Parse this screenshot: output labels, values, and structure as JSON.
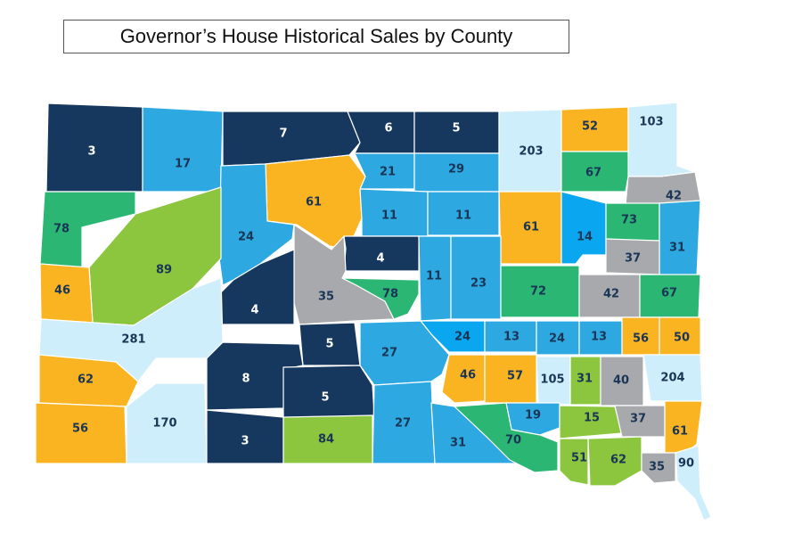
{
  "title": "Governor’s House Historical Sales by County",
  "colors": {
    "navy": "#16385e",
    "blue": "#2ea8e0",
    "brightblue": "#0aa7f0",
    "lightblue": "#cfeefb",
    "green": "#2bb673",
    "lime": "#8cc63f",
    "gold": "#fbb421",
    "gray": "#a7a9ac"
  },
  "counties": [
    {
      "value": "3",
      "color": "navy"
    },
    {
      "value": "17",
      "color": "blue"
    },
    {
      "value": "7",
      "color": "navy"
    },
    {
      "value": "6",
      "color": "navy"
    },
    {
      "value": "5",
      "color": "navy"
    },
    {
      "value": "203",
      "color": "lightblue"
    },
    {
      "value": "52",
      "color": "gold"
    },
    {
      "value": "103",
      "color": "lightblue"
    },
    {
      "value": "21",
      "color": "blue"
    },
    {
      "value": "29",
      "color": "blue"
    },
    {
      "value": "67",
      "color": "green"
    },
    {
      "value": "61",
      "color": "gold"
    },
    {
      "value": "42",
      "color": "gray"
    },
    {
      "value": "78",
      "color": "green"
    },
    {
      "value": "11",
      "color": "blue"
    },
    {
      "value": "11",
      "color": "blue"
    },
    {
      "value": "61",
      "color": "gold"
    },
    {
      "value": "14",
      "color": "brightblue"
    },
    {
      "value": "73",
      "color": "green"
    },
    {
      "value": "24",
      "color": "blue"
    },
    {
      "value": "31",
      "color": "blue"
    },
    {
      "value": "4",
      "color": "navy"
    },
    {
      "value": "37",
      "color": "gray"
    },
    {
      "value": "89",
      "color": "lime"
    },
    {
      "value": "11",
      "color": "blue"
    },
    {
      "value": "46",
      "color": "gold"
    },
    {
      "value": "35",
      "color": "gray"
    },
    {
      "value": "78",
      "color": "green"
    },
    {
      "value": "23",
      "color": "blue"
    },
    {
      "value": "72",
      "color": "green"
    },
    {
      "value": "42",
      "color": "gray"
    },
    {
      "value": "67",
      "color": "green"
    },
    {
      "value": "4",
      "color": "navy"
    },
    {
      "value": "24",
      "color": "brightblue"
    },
    {
      "value": "13",
      "color": "blue"
    },
    {
      "value": "24",
      "color": "blue"
    },
    {
      "value": "13",
      "color": "blue"
    },
    {
      "value": "56",
      "color": "gold"
    },
    {
      "value": "50",
      "color": "gold"
    },
    {
      "value": "281",
      "color": "lightblue"
    },
    {
      "value": "5",
      "color": "navy"
    },
    {
      "value": "27",
      "color": "blue"
    },
    {
      "value": "62",
      "color": "gold"
    },
    {
      "value": "8",
      "color": "navy"
    },
    {
      "value": "46",
      "color": "gold"
    },
    {
      "value": "57",
      "color": "gold"
    },
    {
      "value": "105",
      "color": "lightblue"
    },
    {
      "value": "31",
      "color": "lime"
    },
    {
      "value": "40",
      "color": "gray"
    },
    {
      "value": "204",
      "color": "lightblue"
    },
    {
      "value": "5",
      "color": "navy"
    },
    {
      "value": "19",
      "color": "blue"
    },
    {
      "value": "15",
      "color": "lime"
    },
    {
      "value": "37",
      "color": "gray"
    },
    {
      "value": "56",
      "color": "gold"
    },
    {
      "value": "170",
      "color": "lightblue"
    },
    {
      "value": "27",
      "color": "blue"
    },
    {
      "value": "61",
      "color": "gold"
    },
    {
      "value": "3",
      "color": "navy"
    },
    {
      "value": "84",
      "color": "lime"
    },
    {
      "value": "31",
      "color": "blue"
    },
    {
      "value": "70",
      "color": "green"
    },
    {
      "value": "51",
      "color": "lime"
    },
    {
      "value": "62",
      "color": "lime"
    },
    {
      "value": "35",
      "color": "gray"
    },
    {
      "value": "90",
      "color": "lightblue"
    }
  ]
}
